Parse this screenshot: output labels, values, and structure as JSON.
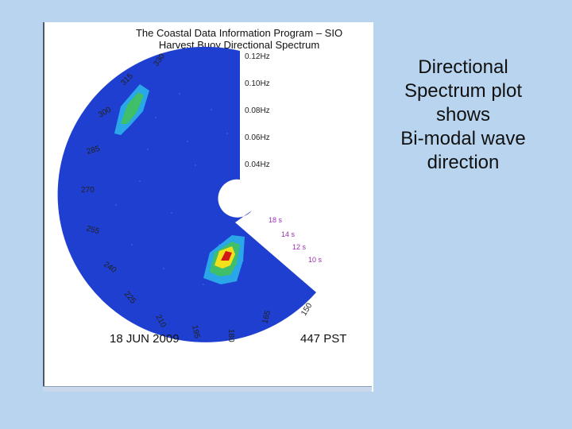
{
  "figure": {
    "title_line1": "The Coastal Data Information Program – SIO",
    "title_line2": "Harvest Buoy Directional Spectrum",
    "frequency_labels": [
      "0.12Hz",
      "0.10Hz",
      "0.08Hz",
      "0.06Hz",
      "0.04Hz"
    ],
    "direction_labels": [
      "330",
      "315",
      "300",
      "285",
      "270",
      "255",
      "240",
      "225",
      "210",
      "195",
      "180",
      "165",
      "150"
    ],
    "period_labels": [
      "18 s",
      "14 s",
      "12 s",
      "10 s"
    ],
    "date": "18 JUN 2009",
    "time": "447 PST",
    "colors": {
      "background": "#1e3fcf",
      "low": "#29a7e8",
      "mid": "#3fbf6a",
      "high": "#f2e01c",
      "peak": "#d01818",
      "period_text": "#9a2fb4"
    }
  },
  "caption": {
    "lines": [
      "Directional",
      "Spectrum plot",
      "shows",
      "Bi-modal wave",
      "direction"
    ]
  }
}
